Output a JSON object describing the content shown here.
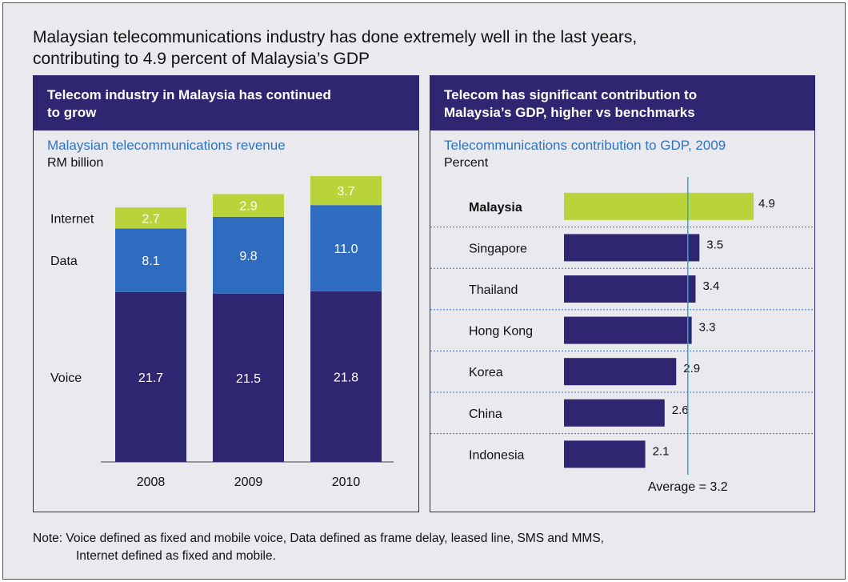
{
  "title_line1": "Malaysian telecommunications industry has done extremely well in the last years,",
  "title_line2": "contributing to 4.9 percent of Malaysia’s GDP",
  "left_panel": {
    "header_line1": "Telecom industry in Malaysia has continued",
    "header_line2": "to grow"
  },
  "right_panel": {
    "header_line1": "Telecom has significant contribution to",
    "header_line2": "Malaysia’s GDP, higher vs benchmarks"
  },
  "note": {
    "line1": "Note: Voice defined as fixed and mobile voice, Data defined as frame delay, leased line, SMS and MMS,",
    "line2": "Internet defined as fixed and mobile."
  },
  "colors": {
    "voice": "#2e2670",
    "data": "#2f6cbf",
    "internet": "#b9d43a",
    "bar": "#2e2670",
    "highlight": "#b9d43a",
    "average_line": "#3aa0d6",
    "divider": "#3a78c2"
  },
  "chart_data": [
    {
      "type": "bar",
      "stacked": true,
      "title": "Malaysian telecommunications revenue",
      "ylabel": "RM billion",
      "categories": [
        "2008",
        "2009",
        "2010"
      ],
      "series": [
        {
          "name": "Voice",
          "values": [
            21.7,
            21.5,
            21.8
          ],
          "labels": [
            "21.7",
            "21.5",
            "21.8"
          ]
        },
        {
          "name": "Data",
          "values": [
            8.1,
            9.8,
            11.0
          ],
          "labels": [
            "8.1",
            "9.8",
            "11.0"
          ]
        },
        {
          "name": "Internet",
          "values": [
            2.7,
            2.9,
            3.7
          ],
          "labels": [
            "2.7",
            "2.9",
            "3.7"
          ]
        }
      ],
      "ylim": [
        0,
        36.5
      ]
    },
    {
      "type": "bar",
      "orientation": "horizontal",
      "title": "Telecommunications contribution to GDP, 2009",
      "ylabel": "Percent",
      "categories": [
        "Malaysia",
        "Singapore",
        "Thailand",
        "Hong Kong",
        "Korea",
        "China",
        "Indonesia"
      ],
      "values": [
        4.9,
        3.5,
        3.4,
        3.3,
        2.9,
        2.6,
        2.1
      ],
      "value_labels": [
        "4.9",
        "3.5",
        "3.4",
        "3.3",
        "2.9",
        "2.6",
        "2.1"
      ],
      "highlight": "Malaysia",
      "average": 3.2,
      "average_label": "Average = 3.2",
      "xlim": [
        0,
        4.9
      ]
    }
  ]
}
